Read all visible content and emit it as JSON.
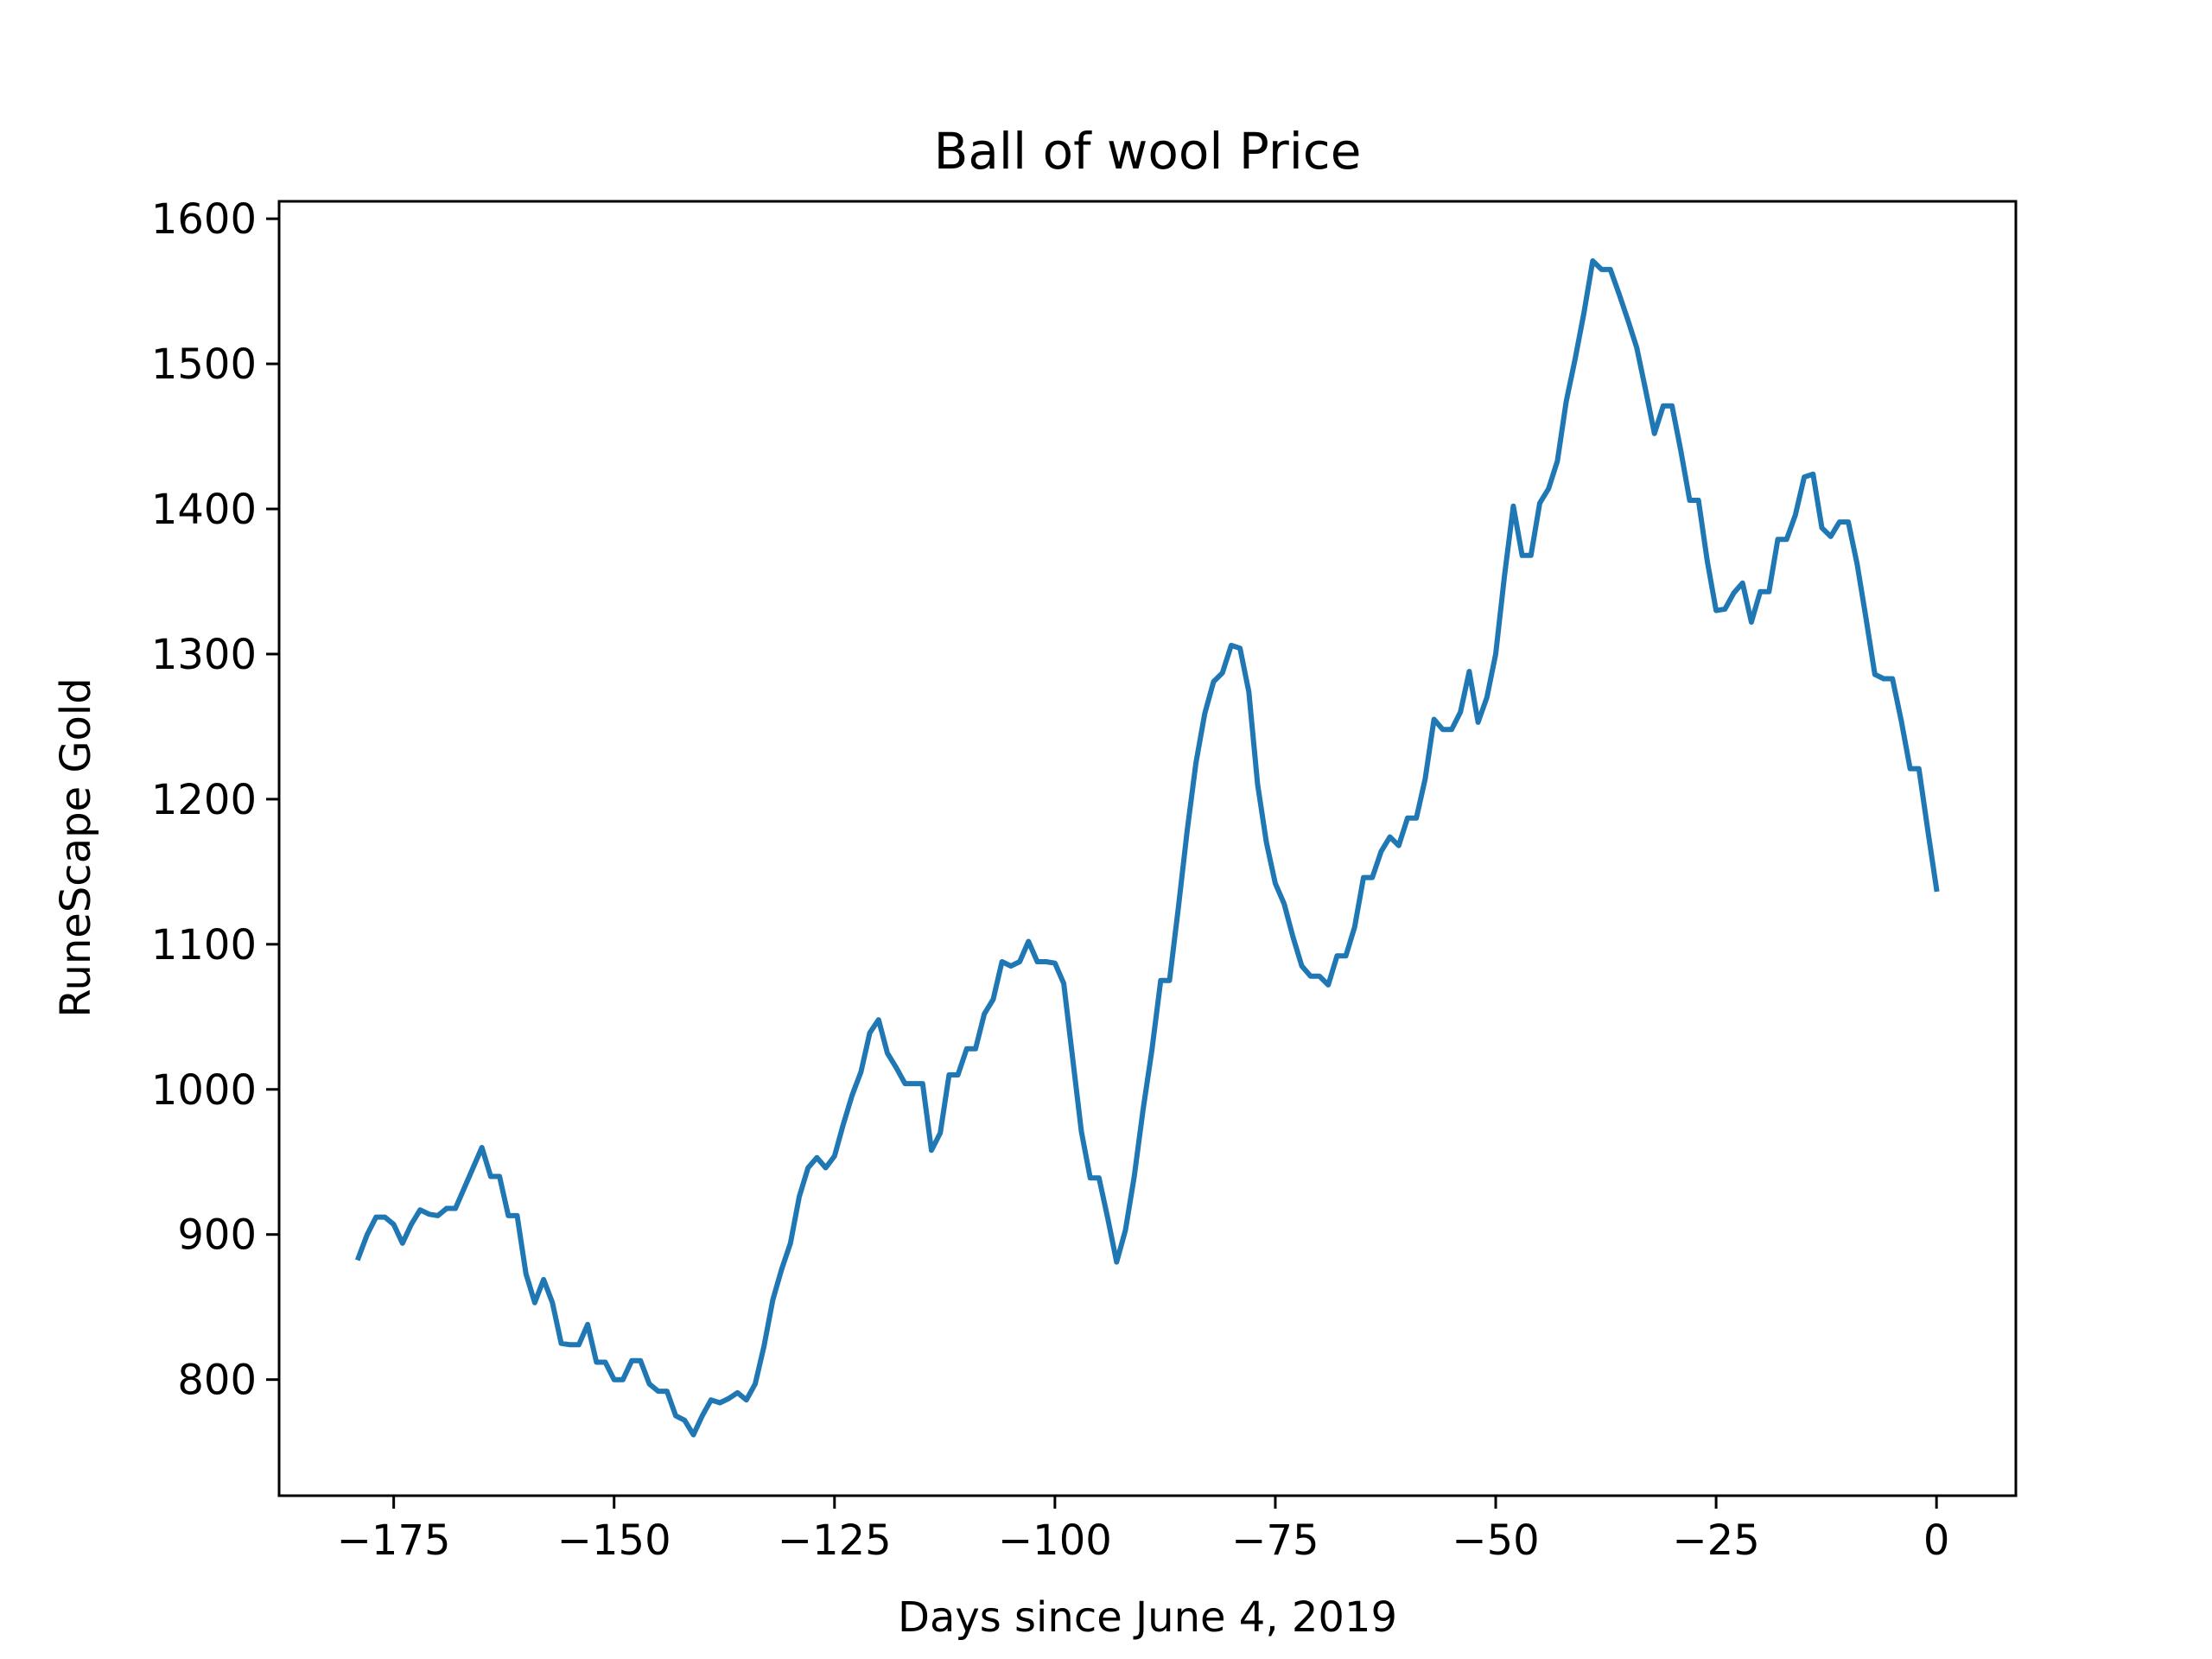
{
  "chart_data": {
    "type": "line",
    "title": "Ball of wool Price",
    "xlabel": "Days since June 4, 2019",
    "ylabel": "RuneScape Gold",
    "xlim": [
      -188,
      9
    ],
    "ylim": [
      720,
      1612
    ],
    "xticks": [
      -175,
      -150,
      -125,
      -100,
      -75,
      -50,
      -25,
      0
    ],
    "xtick_labels": [
      "−175",
      "−150",
      "−125",
      "−100",
      "−75",
      "−50",
      "−25",
      "0"
    ],
    "yticks": [
      800,
      900,
      1000,
      1100,
      1200,
      1300,
      1400,
      1500,
      1600
    ],
    "ytick_labels": [
      "800",
      "900",
      "1000",
      "1100",
      "1200",
      "1300",
      "1400",
      "1500",
      "1600"
    ],
    "grid": false,
    "legend": null,
    "line_color": "#1f77b4",
    "series": [
      {
        "x": [
          -179,
          -178,
          -177,
          -176,
          -175,
          -174,
          -173,
          -172,
          -171,
          -170,
          -169,
          -168,
          -167,
          -166,
          -165,
          -164,
          -163,
          -162,
          -161,
          -160,
          -159,
          -158,
          -157,
          -156,
          -155,
          -154,
          -153,
          -152,
          -151,
          -150,
          -149,
          -148,
          -147,
          -146,
          -145,
          -144,
          -143,
          -142,
          -141,
          -140,
          -139,
          -138,
          -137,
          -136,
          -135,
          -134,
          -133,
          -132,
          -131,
          -130,
          -129,
          -128,
          -127,
          -126,
          -125,
          -124,
          -123,
          -122,
          -121,
          -120,
          -119,
          -118,
          -117,
          -116,
          -115,
          -114,
          -113,
          -112,
          -111,
          -110,
          -109,
          -108,
          -107,
          -106,
          -105,
          -104,
          -103,
          -102,
          -101,
          -100,
          -99,
          -98,
          -97,
          -96,
          -95,
          -94,
          -93,
          -92,
          -91,
          -90,
          -89,
          -88,
          -87,
          -86,
          -85,
          -84,
          -83,
          -82,
          -81,
          -80,
          -79,
          -78,
          -77,
          -76,
          -75,
          -74,
          -73,
          -72,
          -71,
          -70,
          -69,
          -68,
          -67,
          -66,
          -65,
          -64,
          -63,
          -62,
          -61,
          -60,
          -59,
          -58,
          -57,
          -56,
          -55,
          -54,
          -53,
          -52,
          -51,
          -50,
          -49,
          -48,
          -47,
          -46,
          -45,
          -44,
          -43,
          -42,
          -41,
          -40,
          -39,
          -38,
          -37,
          -36,
          -35,
          -34,
          -33,
          -32,
          -31,
          -30,
          -29,
          -28,
          -27,
          -26,
          -25,
          -24,
          -23,
          -22,
          -21,
          -20,
          -19,
          -18,
          -17,
          -16,
          -15,
          -14,
          -13,
          -12,
          -11,
          -10,
          -9,
          -8,
          -7,
          -6,
          -5,
          -4,
          -3,
          -2,
          -1,
          0
        ],
        "values": [
          884,
          900,
          912,
          912,
          907,
          894,
          907,
          917,
          914,
          913,
          918,
          918,
          932,
          946,
          960,
          940,
          940,
          913,
          913,
          873,
          853,
          869,
          853,
          825,
          824,
          824,
          838,
          812,
          812,
          800,
          800,
          813,
          813,
          797,
          792,
          792,
          775,
          772,
          762,
          775,
          786,
          784,
          787,
          791,
          786,
          797,
          823,
          855,
          876,
          894,
          926,
          946,
          953,
          946,
          954,
          976,
          996,
          1012,
          1039,
          1048,
          1025,
          1015,
          1004,
          1004,
          1004,
          958,
          970,
          1010,
          1010,
          1028,
          1028,
          1052,
          1062,
          1088,
          1085,
          1088,
          1102,
          1088,
          1088,
          1087,
          1073,
          1022,
          971,
          939,
          939,
          911,
          881,
          903,
          940,
          986,
          1027,
          1075,
          1075,
          1125,
          1178,
          1225,
          1259,
          1281,
          1287,
          1306,
          1304,
          1274,
          1210,
          1170,
          1142,
          1128,
          1105,
          1085,
          1078,
          1078,
          1072,
          1092,
          1092,
          1112,
          1146,
          1146,
          1164,
          1174,
          1168,
          1187,
          1187,
          1214,
          1255,
          1248,
          1248,
          1260,
          1288,
          1253,
          1270,
          1300,
          1354,
          1402,
          1368,
          1368,
          1404,
          1414,
          1433,
          1474,
          1503,
          1535,
          1571,
          1565,
          1565,
          1548,
          1530,
          1511,
          1482,
          1452,
          1471,
          1471,
          1440,
          1406,
          1406,
          1364,
          1330,
          1331,
          1342,
          1349,
          1322,
          1343,
          1343,
          1379,
          1379,
          1396,
          1422,
          1424,
          1387,
          1381,
          1391,
          1391,
          1362,
          1325,
          1286,
          1283,
          1283,
          1254,
          1221,
          1221,
          1179,
          1138
        ]
      }
    ]
  }
}
